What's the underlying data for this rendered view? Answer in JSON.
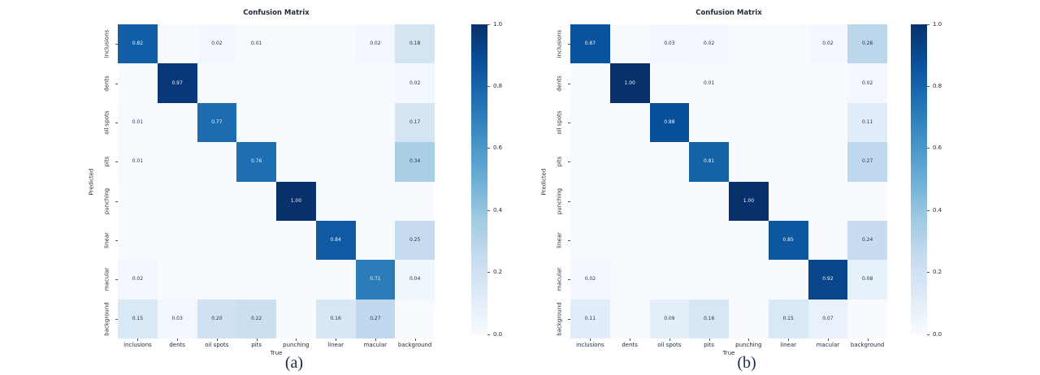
{
  "figure": {
    "background": "#ffffff",
    "captions": [
      "(a)",
      "(b)"
    ]
  },
  "colors": {
    "colormap_min": "#f7fbff",
    "colormap_max": "#08306b",
    "annotation_on_dark": "#eef3fa",
    "annotation_on_light": "#2b3440",
    "label_text": "#222c3c"
  },
  "chart_data": [
    {
      "type": "heatmap",
      "title": "Confusion Matrix",
      "xlabel": "True",
      "ylabel": "Predicted",
      "colormap": "Blues",
      "vmin": 0.0,
      "vmax": 1.0,
      "legend_position": "right-colorbar",
      "colorbar_ticks": [
        "1.0",
        "0.8",
        "0.6",
        "0.4",
        "0.2",
        "0.0"
      ],
      "x_categories": [
        "inclusions",
        "dents",
        "oil spots",
        "pits",
        "punching",
        "linear",
        "macular",
        "background"
      ],
      "y_categories": [
        "inclusions",
        "dents",
        "oil spots",
        "pits",
        "punching",
        "linear",
        "macular",
        "background"
      ],
      "annotation_note": "values shown to 2 decimals; zero cells unannotated",
      "matrix": [
        [
          0.82,
          0,
          0.02,
          0.01,
          0,
          0,
          0.02,
          0.18
        ],
        [
          0,
          0.97,
          0,
          0,
          0,
          0,
          0,
          0.02
        ],
        [
          0.01,
          0,
          0.77,
          0,
          0,
          0,
          0,
          0.17
        ],
        [
          0.01,
          0,
          0,
          0.76,
          0,
          0,
          0,
          0.34
        ],
        [
          0,
          0,
          0,
          0,
          1.0,
          0,
          0,
          0
        ],
        [
          0,
          0,
          0,
          0,
          0,
          0.84,
          0,
          0.25
        ],
        [
          0.02,
          0,
          0,
          0,
          0,
          0,
          0.71,
          0.04
        ],
        [
          0.15,
          0.03,
          0.2,
          0.22,
          0,
          0.16,
          0.27,
          0
        ]
      ]
    },
    {
      "type": "heatmap",
      "title": "Confusion Matrix",
      "xlabel": "True",
      "ylabel": "Predicted",
      "colormap": "Blues",
      "vmin": 0.0,
      "vmax": 1.0,
      "legend_position": "right-colorbar",
      "colorbar_ticks": [
        "1.0",
        "0.8",
        "0.6",
        "0.4",
        "0.2",
        "0.0"
      ],
      "x_categories": [
        "inclusions",
        "dents",
        "oil spots",
        "pits",
        "punching",
        "linear",
        "macular",
        "background"
      ],
      "y_categories": [
        "inclusions",
        "dents",
        "oil spots",
        "pits",
        "punching",
        "linear",
        "macular",
        "background"
      ],
      "annotation_note": "values shown to 2 decimals; zero cells unannotated",
      "matrix": [
        [
          0.87,
          0,
          0.03,
          0.02,
          0,
          0,
          0.02,
          0.28
        ],
        [
          0,
          1.0,
          0,
          0.01,
          0,
          0,
          0,
          0.02
        ],
        [
          0,
          0,
          0.88,
          0,
          0,
          0,
          0,
          0.11
        ],
        [
          0,
          0,
          0,
          0.81,
          0,
          0,
          0,
          0.27
        ],
        [
          0,
          0,
          0,
          0,
          1.0,
          0,
          0,
          0
        ],
        [
          0,
          0,
          0,
          0,
          0,
          0.85,
          0,
          0.24
        ],
        [
          0.02,
          0,
          0,
          0,
          0,
          0,
          0.92,
          0.08
        ],
        [
          0.11,
          0,
          0.09,
          0.16,
          0,
          0.15,
          0.07,
          0
        ]
      ]
    }
  ]
}
